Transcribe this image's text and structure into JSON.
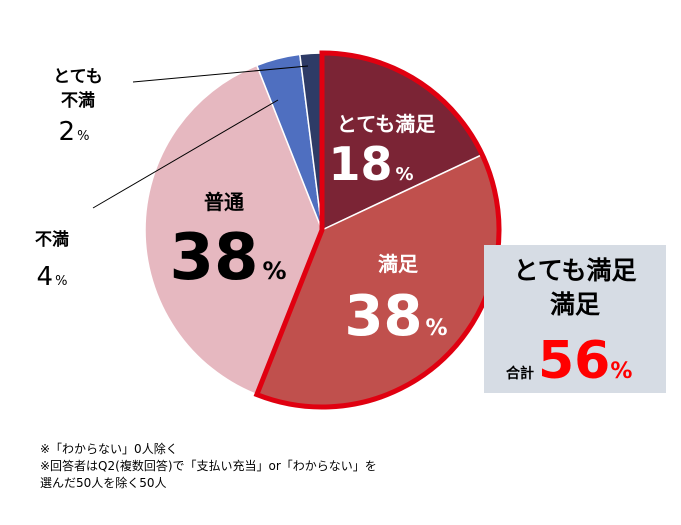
{
  "chart_data": {
    "type": "pie",
    "categories": [
      "とても満足",
      "満足",
      "普通",
      "不満",
      "とても不満"
    ],
    "values": [
      18,
      38,
      38,
      4,
      2
    ],
    "unit": "%",
    "colors": [
      "#7b2435",
      "#c0504d",
      "#e6b8c0",
      "#4f6fc0",
      "#2e3b66"
    ],
    "highlight_outline": "#e00010",
    "labels": [
      {
        "name": "とても満足",
        "value": "18",
        "unit": "%"
      },
      {
        "name": "満足",
        "value": "38",
        "unit": "%"
      },
      {
        "name": "普通",
        "value": "38",
        "unit": "%"
      },
      {
        "name": "不満",
        "value": "4",
        "unit": "%"
      },
      {
        "name1": "とても",
        "name2": "不満",
        "value": "2",
        "unit": "%"
      }
    ]
  },
  "callout": {
    "line1": "とても満足",
    "line2": "満足",
    "total_label": "合計",
    "total_value": "56",
    "total_unit": "%"
  },
  "notes": [
    "※「わからない」0人除く",
    "※回答者はQ2(複数回答)で「支払い充当」or「わからない」を",
    "選んだ50人を除く50人"
  ]
}
